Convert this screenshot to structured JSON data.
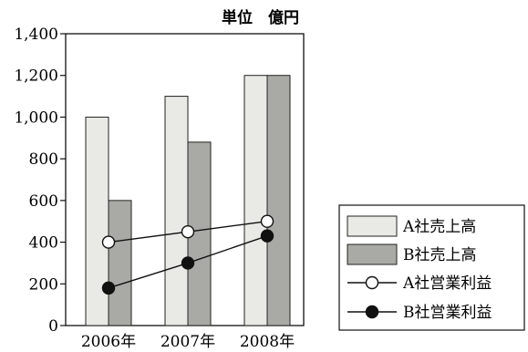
{
  "chart_data": {
    "type": "bar",
    "unit_label": "単位　億円",
    "categories": [
      "2006年",
      "2007年",
      "2008年"
    ],
    "ylim": [
      0,
      1400
    ],
    "yticks": [
      0,
      200,
      400,
      600,
      800,
      1000,
      1200,
      1400
    ],
    "ytick_labels": [
      "0",
      "200",
      "400",
      "600",
      "800",
      "1,000",
      "1,200",
      "1,400"
    ],
    "grid": false,
    "legend_position": "right",
    "series": [
      {
        "name": "A社売上高",
        "kind": "bar",
        "values": [
          1000,
          1100,
          1200
        ],
        "color": "#e9e9e6"
      },
      {
        "name": "B社売上高",
        "kind": "bar",
        "values": [
          600,
          880,
          1200
        ],
        "color": "#a9a9a5"
      },
      {
        "name": "A社営業利益",
        "kind": "line",
        "values": [
          400,
          450,
          500
        ],
        "marker": "open-circle"
      },
      {
        "name": "B社営業利益",
        "kind": "line",
        "values": [
          180,
          300,
          430
        ],
        "marker": "filled-circle"
      }
    ]
  }
}
